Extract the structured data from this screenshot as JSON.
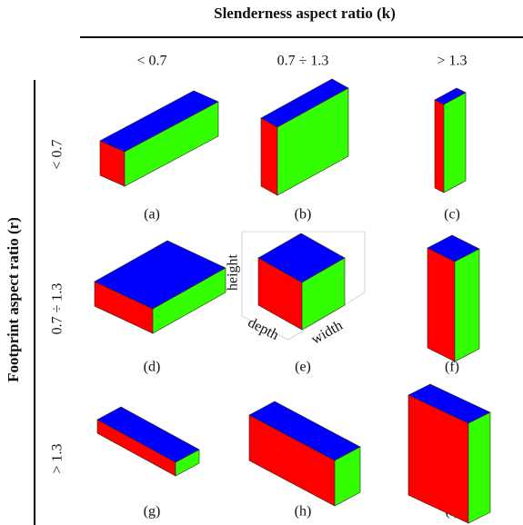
{
  "header": {
    "title": "Slenderness aspect ratio (k)",
    "columns": [
      "< 0.7",
      "0.7 ÷ 1.3",
      "> 1.3"
    ]
  },
  "side": {
    "title": "Footprint aspect ratio (r)",
    "rows": [
      "< 0.7",
      "0.7 ÷ 1.3",
      "> 1.3"
    ]
  },
  "panels": [
    {
      "caption": "(a)"
    },
    {
      "caption": "(b)"
    },
    {
      "caption": "(c)"
    },
    {
      "caption": "(d)"
    },
    {
      "caption": "(e)"
    },
    {
      "caption": "(f)"
    },
    {
      "caption": "(g)"
    },
    {
      "caption": "(h)"
    },
    {
      "caption": "(i)"
    }
  ],
  "dimension_labels": [
    "height",
    "depth",
    "width"
  ]
}
